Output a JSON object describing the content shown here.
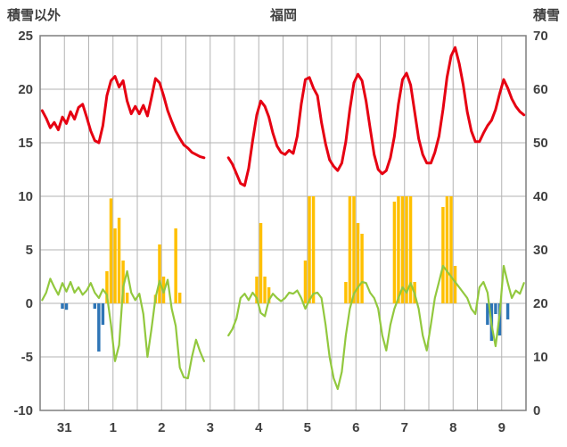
{
  "header": {
    "left_axis_title": "積雪以外",
    "title": "福岡",
    "right_axis_title": "積雪"
  },
  "chart_data": {
    "type": "line",
    "title": "福岡",
    "left_axis": {
      "label": "積雪以外",
      "min": -10,
      "max": 25,
      "ticks": [
        25,
        20,
        15,
        10,
        5,
        0,
        -5,
        -10
      ]
    },
    "right_axis": {
      "label": "積雪",
      "min": 0,
      "max": 70,
      "ticks": [
        70,
        60,
        50,
        40,
        30,
        20,
        10,
        0
      ]
    },
    "x_labels": [
      "31",
      "1",
      "2",
      "3",
      "4",
      "5",
      "6",
      "7",
      "8",
      "9"
    ],
    "points_per_day": 12,
    "grid_interval_hours": 12,
    "legend": "none",
    "colors": {
      "grid": "#b3b3b3",
      "border": "#7f7f7f",
      "text": "#404040"
    },
    "series": [
      {
        "name": "yellow-bars",
        "type": "bar",
        "axis": "left",
        "color": "#ffc000",
        "values": [
          0,
          0,
          0,
          0,
          0,
          0,
          0,
          0,
          0,
          0,
          0,
          0,
          0,
          0,
          0,
          0,
          3.0,
          9.8,
          7.0,
          8.0,
          4.0,
          1.0,
          0,
          0,
          0,
          0,
          0,
          0,
          0.8,
          5.5,
          2.5,
          0,
          0,
          7.0,
          1.0,
          0,
          0,
          0,
          0,
          0,
          0,
          0,
          0,
          0,
          0,
          0,
          0,
          0,
          0,
          0,
          0,
          0,
          0,
          2.5,
          7.5,
          2.5,
          1.5,
          0,
          0,
          0,
          0,
          0,
          0,
          0,
          0,
          4.0,
          10.0,
          10.0,
          0,
          0,
          0,
          0,
          0,
          0,
          0,
          2.0,
          10.0,
          10.0,
          7.5,
          6.5,
          0,
          0,
          0,
          0,
          0,
          0,
          0,
          9.5,
          10.0,
          10.0,
          10.0,
          10.0,
          2.0,
          0,
          0,
          0,
          0,
          0,
          0,
          9.0,
          10.0,
          10.0,
          3.5,
          0,
          0,
          0,
          0,
          0,
          0,
          0,
          0,
          0,
          0,
          0,
          0,
          0,
          0,
          0,
          0,
          0
        ]
      },
      {
        "name": "blue-bars",
        "type": "bar",
        "axis": "left",
        "color": "#2e75b6",
        "values": [
          0,
          0,
          0,
          0,
          0,
          -0.5,
          -0.6,
          0,
          0,
          0,
          0,
          0,
          0,
          -0.5,
          -4.5,
          -2.0,
          0,
          0,
          0,
          0,
          0,
          0,
          0,
          0,
          0,
          0,
          0,
          0,
          0,
          0,
          0,
          0,
          0,
          0,
          0,
          0,
          0,
          0,
          0,
          0,
          0,
          0,
          0,
          0,
          0,
          0,
          0,
          0,
          0,
          0,
          0,
          0,
          0,
          0,
          0,
          0,
          0,
          0,
          0,
          0,
          0,
          0,
          0,
          0,
          0,
          0,
          0,
          0,
          0,
          0,
          0,
          0,
          0,
          0,
          0,
          0,
          0,
          0,
          0,
          0,
          0,
          0,
          0,
          0,
          0,
          0,
          0,
          0,
          0,
          0,
          0,
          0,
          0,
          0,
          0,
          0,
          0,
          0,
          0,
          0,
          0,
          0,
          0,
          0,
          0,
          0,
          0,
          0,
          0,
          0,
          -2.0,
          -3.5,
          -1.0,
          -3.0,
          0,
          -1.5,
          0,
          0,
          0,
          0
        ]
      },
      {
        "name": "green-line",
        "type": "line",
        "axis": "left",
        "color": "#92c83e",
        "width": 2.2,
        "values": [
          0.3,
          1.0,
          2.3,
          1.5,
          0.8,
          1.9,
          1.1,
          2.0,
          1.0,
          1.5,
          0.8,
          1.2,
          1.9,
          1.0,
          0.5,
          1.3,
          0.8,
          -2.0,
          -5.4,
          -3.9,
          1.5,
          3.0,
          1.0,
          0.3,
          0.9,
          -1.0,
          -5.0,
          -2.4,
          0.5,
          2.1,
          1.0,
          2.2,
          -0.5,
          -2.1,
          -6.0,
          -6.9,
          -7.0,
          -5.0,
          -3.4,
          -4.5,
          -5.4,
          null,
          null,
          null,
          null,
          null,
          -3.0,
          -2.4,
          -1.4,
          0.5,
          0.9,
          0.3,
          1.0,
          0.5,
          -0.9,
          -1.2,
          0.3,
          0.9,
          0.5,
          0.2,
          0.5,
          1.0,
          0.9,
          1.2,
          0.5,
          -0.5,
          0.3,
          0.9,
          1.0,
          0.5,
          -2.0,
          -5.0,
          -7.0,
          -8.0,
          -6.4,
          -3.0,
          -0.5,
          0.9,
          1.5,
          2.0,
          1.9,
          1.0,
          0.5,
          -0.5,
          -3.0,
          -4.4,
          -2.0,
          -0.5,
          0.5,
          1.5,
          1.0,
          1.9,
          0.9,
          -0.5,
          -3.0,
          -4.4,
          -2.0,
          0.5,
          2.0,
          3.5,
          3.0,
          2.5,
          2.0,
          1.5,
          1.0,
          0.5,
          -0.5,
          -1.0,
          1.5,
          2.0,
          1.0,
          -2.0,
          -4.0,
          -1.0,
          3.5,
          1.9,
          0.5,
          1.2,
          0.9,
          1.9
        ]
      },
      {
        "name": "red-line",
        "type": "line",
        "axis": "left",
        "color": "#e60012",
        "width": 3,
        "values": [
          18.0,
          17.3,
          16.4,
          16.9,
          16.2,
          17.4,
          16.8,
          17.9,
          17.2,
          18.3,
          18.6,
          17.4,
          16.1,
          15.2,
          15.0,
          16.6,
          19.4,
          20.8,
          21.2,
          20.2,
          20.8,
          18.9,
          17.7,
          18.4,
          17.7,
          18.5,
          17.5,
          19.2,
          21.0,
          20.6,
          19.4,
          18.0,
          17.0,
          16.1,
          15.4,
          14.8,
          14.5,
          14.1,
          13.9,
          13.7,
          13.6,
          null,
          null,
          null,
          null,
          null,
          13.6,
          13.0,
          12.1,
          11.2,
          11.0,
          12.6,
          15.2,
          17.6,
          18.9,
          18.4,
          17.4,
          15.9,
          14.7,
          14.1,
          13.9,
          14.3,
          14.0,
          15.6,
          18.6,
          20.9,
          21.1,
          20.1,
          19.4,
          16.9,
          14.9,
          13.4,
          12.8,
          12.4,
          13.1,
          15.1,
          18.1,
          20.6,
          21.4,
          20.8,
          18.9,
          16.4,
          13.9,
          12.5,
          12.1,
          12.4,
          13.6,
          15.6,
          18.6,
          20.9,
          21.5,
          20.4,
          17.9,
          15.4,
          13.9,
          13.1,
          13.1,
          14.1,
          15.6,
          18.1,
          21.1,
          23.1,
          23.9,
          22.4,
          20.4,
          17.9,
          16.1,
          15.1,
          15.1,
          15.9,
          16.6,
          17.1,
          18.1,
          19.6,
          20.9,
          20.1,
          19.1,
          18.4,
          17.9,
          17.6
        ]
      }
    ]
  }
}
